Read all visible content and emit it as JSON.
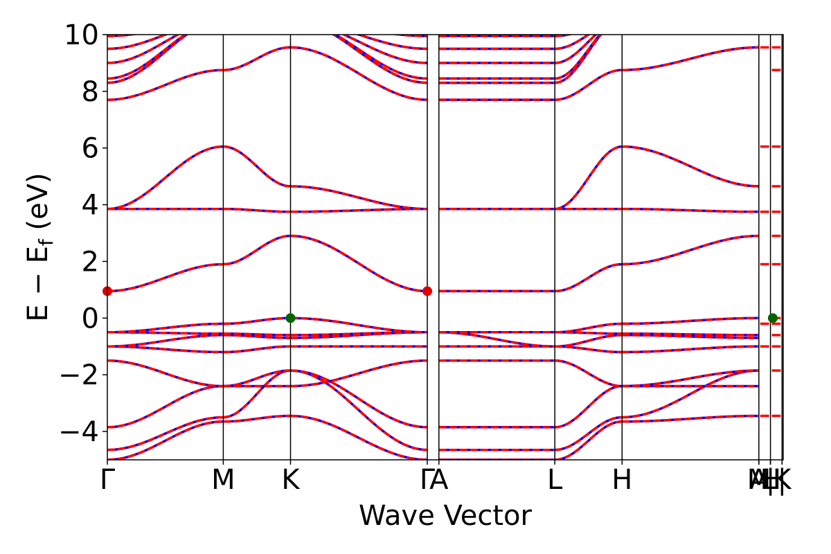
{
  "chart_data": {
    "type": "line",
    "xlabel": "Wave Vector",
    "ylabel": "E − E",
    "ylabel_subscript": "f",
    "ylabel_unit": " (eV)",
    "ylim": [
      -5,
      10
    ],
    "yticks": [
      -4,
      -2,
      0,
      2,
      4,
      6,
      8,
      10
    ],
    "ytick_labels": [
      "−4",
      "−2",
      "0",
      "2",
      "4",
      "6",
      "8",
      "10"
    ],
    "xlim": [
      0,
      5.83
    ],
    "kpoints": [
      {
        "label": "Γ",
        "x": 0.0
      },
      {
        "label": "M",
        "x": 1.0
      },
      {
        "label": "K",
        "x": 1.58
      },
      {
        "label": "Γ",
        "x": 2.76
      },
      {
        "label": "A",
        "x": 2.86
      },
      {
        "label": "L",
        "x": 3.86
      },
      {
        "label": "H",
        "x": 4.44
      },
      {
        "label": "A",
        "x": 5.62
      },
      {
        "label": "M",
        "x": 5.62
      },
      {
        "label": "|",
        "x": 5.72
      },
      {
        "label": "L",
        "x": 5.72
      },
      {
        "label": "H",
        "x": 5.72
      },
      {
        "label": "|",
        "x": 5.82
      },
      {
        "label": "K",
        "x": 5.82
      }
    ],
    "segments": [
      [
        0.0,
        1.0
      ],
      [
        1.0,
        1.58
      ],
      [
        1.58,
        2.76
      ],
      [
        2.86,
        3.86
      ],
      [
        3.86,
        4.44
      ],
      [
        4.44,
        5.62
      ]
    ],
    "series": [
      {
        "values_at_kpoints": [
          -5.0,
          -3.65,
          -3.45,
          -5.0,
          -5.0,
          -3.65,
          -3.45,
          -5.0
        ]
      },
      {
        "values_at_kpoints": [
          -4.65,
          -3.5,
          -1.85,
          -4.65,
          -4.65,
          -3.5,
          -1.85,
          -4.65
        ]
      },
      {
        "values_at_kpoints": [
          -3.85,
          -2.4,
          -1.85,
          -3.85,
          -3.85,
          -2.4,
          -1.85,
          -3.85
        ]
      },
      {
        "values_at_kpoints": [
          -1.5,
          -2.4,
          -2.4,
          -1.5,
          -1.5,
          -2.4,
          -2.4,
          -1.5
        ]
      },
      {
        "values_at_kpoints": [
          -1.0,
          -1.2,
          -1.0,
          -1.0,
          -1.0,
          -1.2,
          -1.0,
          -1.0
        ]
      },
      {
        "values_at_kpoints": [
          -1.0,
          -0.6,
          -0.7,
          -0.5,
          -1.0,
          -0.6,
          -0.7,
          -0.5
        ]
      },
      {
        "values_at_kpoints": [
          -0.5,
          -0.55,
          -0.6,
          -0.5,
          -0.5,
          -0.55,
          -0.6,
          -0.5
        ]
      },
      {
        "values_at_kpoints": [
          -0.5,
          -0.2,
          0.0,
          -0.5,
          -0.5,
          -0.2,
          0.0,
          -0.5
        ]
      },
      {
        "values_at_kpoints": [
          0.95,
          1.9,
          2.9,
          0.95,
          0.95,
          1.9,
          2.9,
          0.95
        ]
      },
      {
        "values_at_kpoints": [
          3.85,
          3.85,
          3.75,
          3.85,
          3.85,
          3.85,
          3.75,
          3.85
        ]
      },
      {
        "values_at_kpoints": [
          3.85,
          6.05,
          4.65,
          3.85,
          3.85,
          6.05,
          4.65,
          3.85
        ]
      },
      {
        "values_at_kpoints": [
          7.7,
          8.75,
          9.55,
          7.7,
          7.7,
          8.75,
          9.55,
          7.7
        ]
      },
      {
        "values_at_kpoints": [
          8.3,
          10.5,
          10.5,
          8.3,
          8.3,
          10.5,
          10.5,
          8.3
        ]
      },
      {
        "values_at_kpoints": [
          8.45,
          10.5,
          10.5,
          8.45,
          8.45,
          10.5,
          10.5,
          8.45
        ]
      },
      {
        "values_at_kpoints": [
          9.0,
          10.5,
          10.5,
          9.0,
          9.0,
          10.5,
          10.5,
          9.0
        ]
      },
      {
        "values_at_kpoints": [
          9.5,
          10.5,
          10.5,
          9.5,
          9.5,
          10.5,
          10.5,
          9.5
        ]
      },
      {
        "values_at_kpoints": [
          9.95,
          10.5,
          10.5,
          9.95,
          9.95,
          10.5,
          10.5,
          9.95
        ]
      }
    ],
    "tail_ticks_x": [
      [
        5.62,
        5.72
      ],
      [
        5.72,
        5.82
      ]
    ],
    "tail_values": [
      -3.45,
      -1.85,
      -1.0,
      -0.6,
      -0.2,
      0.0,
      1.9,
      2.9,
      3.75,
      4.65,
      6.05,
      8.75,
      9.55
    ],
    "markers": [
      {
        "x": 0.0,
        "y": 0.95,
        "color": "#e00000"
      },
      {
        "x": 2.76,
        "y": 0.95,
        "color": "#e00000"
      },
      {
        "x": 1.58,
        "y": 0.0,
        "color": "#006400"
      },
      {
        "x": 5.74,
        "y": 0.0,
        "color": "#006400"
      }
    ],
    "colors": {
      "line_solid": "#0000ff",
      "line_dashed": "#ff0000",
      "axis": "#000000"
    },
    "grid": false,
    "legend": "none"
  }
}
